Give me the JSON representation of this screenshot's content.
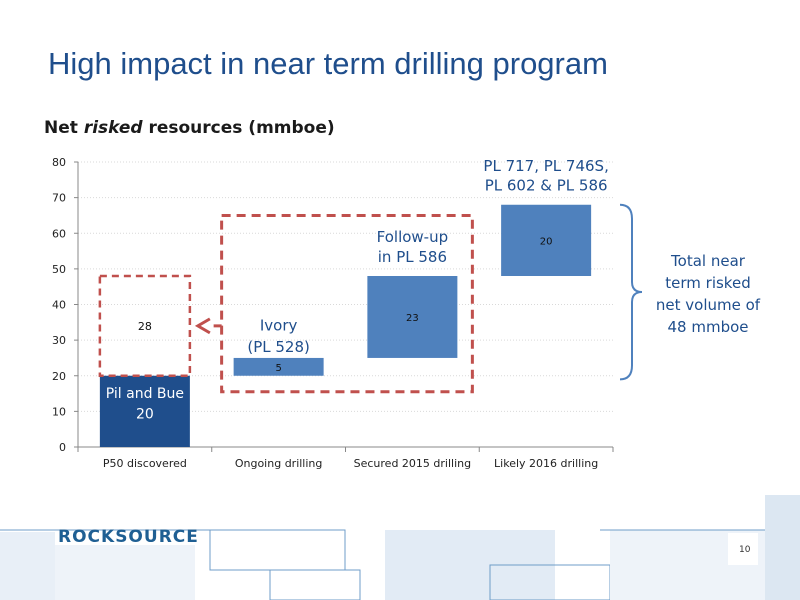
{
  "slide": {
    "title": "High impact in near term drilling program",
    "subtitle_pre": "Net ",
    "subtitle_em": "risked",
    "subtitle_post": " resources (mmboe)",
    "brand": "ROCKSOURCE",
    "page_number": "10"
  },
  "chart_data": {
    "type": "bar",
    "variant": "waterfall",
    "ylim": [
      0,
      80
    ],
    "yticks": [
      0,
      10,
      20,
      30,
      40,
      50,
      60,
      70,
      80
    ],
    "categories": [
      "P50 discovered",
      "Ongoing drilling",
      "Secured 2015 drilling",
      "Likely 2016 drilling"
    ],
    "bars": [
      {
        "category": "P50 discovered",
        "base": 0,
        "value": 20,
        "label": "Pil and Bue",
        "value_label": "20",
        "color": "#1f4e8c"
      },
      {
        "category": "Ongoing drilling",
        "base": 20,
        "value": 5,
        "label": "Ivory (PL 528)",
        "value_label": "5",
        "color": "#4f81bd"
      },
      {
        "category": "Secured 2015 drilling",
        "base": 25,
        "value": 23,
        "label": "Follow-up in PL 586",
        "value_label": "23",
        "color": "#4f81bd"
      },
      {
        "category": "Likely 2016 drilling",
        "base": 48,
        "value": 20,
        "label": "PL 717, PL 746S, PL 602 & PL 586",
        "value_label": "20",
        "color": "#4f81bd"
      }
    ],
    "annotations": {
      "ivory_l1": "Ivory",
      "ivory_l2": "(PL 528)",
      "followup_l1": "Follow-up",
      "followup_l2": "in PL 586",
      "likely_l1": "PL 717, PL 746S,",
      "likely_l2": "PL 602 & PL 586",
      "pil_l1": "Pil and Bue",
      "pil_l2": "20",
      "dashed_box_value": "28",
      "dashed_box_range": [
        20,
        48
      ],
      "total_l1": "Total near",
      "total_l2": "term risked",
      "total_l3": "net volume of",
      "total_l4": "48 mmboe"
    },
    "colors": {
      "accent": "#1f4e8c",
      "bar": "#4f81bd",
      "dashed": "#c0504d",
      "grid": "#d9d9d9"
    }
  }
}
